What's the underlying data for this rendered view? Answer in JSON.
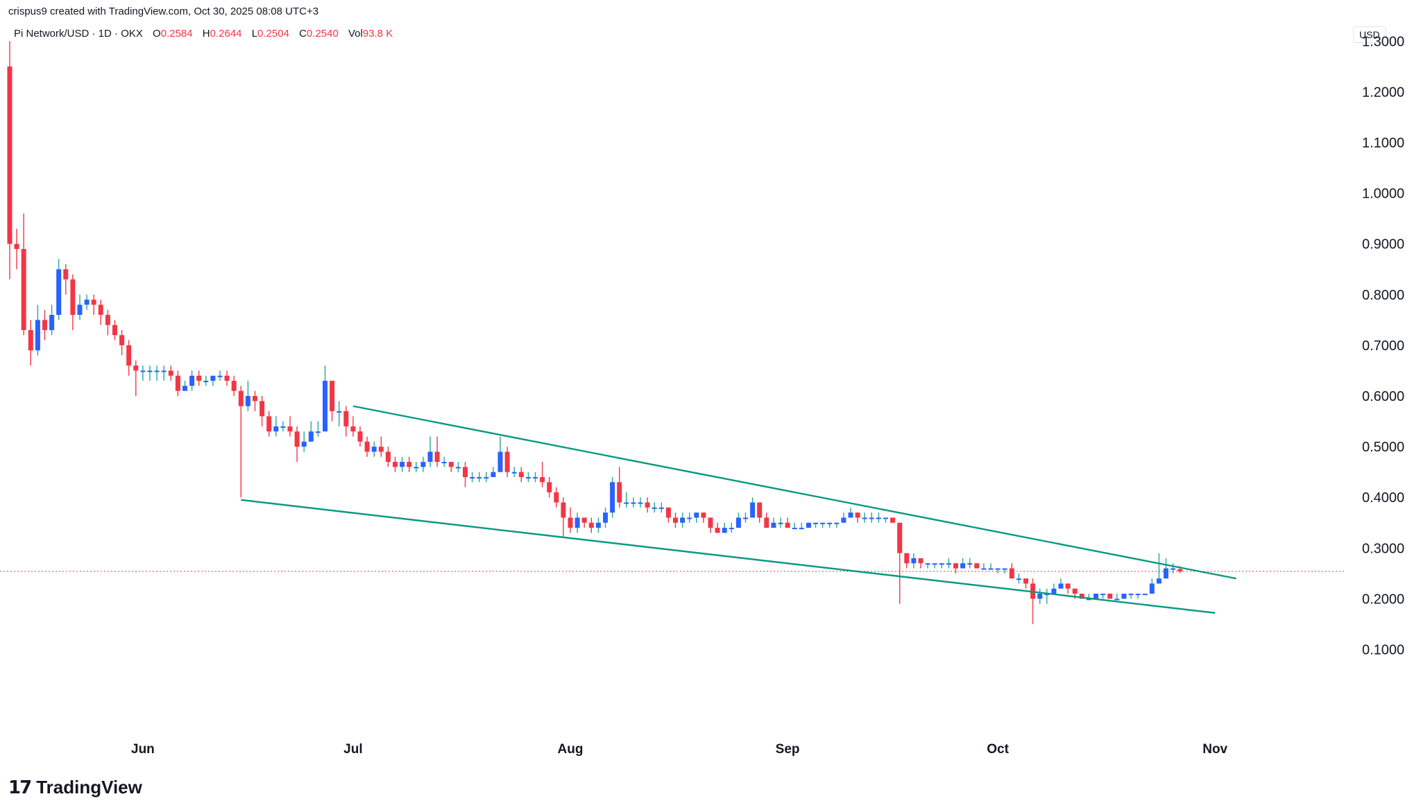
{
  "header": {
    "credit": "crispus9 created with TradingView.com, Oct 30, 2025 08:08 UTC+3"
  },
  "symbol": {
    "name": "Pi Network/USD · 1D · OKX",
    "open_label": "O",
    "open": "0.2584",
    "high_label": "H",
    "high": "0.2644",
    "low_label": "L",
    "low": "0.2504",
    "close_label": "C",
    "close": "0.2540",
    "vol_label": "Vol",
    "vol": "93.8 K"
  },
  "currency": "USD",
  "footer": {
    "logo_mark": "17",
    "brand": "TradingView"
  },
  "colors": {
    "up": "#2962ff",
    "down": "#f23645",
    "wick_up": "#26a69a",
    "channel": "#089981",
    "price_line": "#f23645"
  },
  "chart_data": {
    "type": "candlestick",
    "ylim": [
      0.05,
      1.45
    ],
    "y_ticks": [
      "1.3000",
      "1.2000",
      "1.1000",
      "1.0000",
      "0.9000",
      "0.8000",
      "0.7000",
      "0.6000",
      "0.5000",
      "0.4000",
      "0.3000",
      "0.2000",
      "0.1000"
    ],
    "x_ticks": [
      {
        "label": "Jun",
        "day": 19
      },
      {
        "label": "Jul",
        "day": 49
      },
      {
        "label": "Aug",
        "day": 80
      },
      {
        "label": "Sep",
        "day": 111
      },
      {
        "label": "Oct",
        "day": 141
      },
      {
        "label": "Nov",
        "day": 172
      }
    ],
    "last_price": 0.254,
    "candles": [
      [
        1.25,
        0.9,
        1.3,
        0.83
      ],
      [
        0.9,
        0.89,
        0.93,
        0.85
      ],
      [
        0.89,
        0.73,
        0.96,
        0.72
      ],
      [
        0.73,
        0.69,
        0.75,
        0.66
      ],
      [
        0.69,
        0.75,
        0.78,
        0.68
      ],
      [
        0.75,
        0.73,
        0.77,
        0.71
      ],
      [
        0.73,
        0.76,
        0.78,
        0.72
      ],
      [
        0.76,
        0.85,
        0.87,
        0.75
      ],
      [
        0.85,
        0.83,
        0.86,
        0.8
      ],
      [
        0.83,
        0.76,
        0.84,
        0.73
      ],
      [
        0.76,
        0.78,
        0.8,
        0.75
      ],
      [
        0.78,
        0.79,
        0.8,
        0.77
      ],
      [
        0.79,
        0.78,
        0.8,
        0.76
      ],
      [
        0.78,
        0.76,
        0.79,
        0.74
      ],
      [
        0.76,
        0.74,
        0.77,
        0.72
      ],
      [
        0.74,
        0.72,
        0.75,
        0.71
      ],
      [
        0.72,
        0.7,
        0.73,
        0.68
      ],
      [
        0.7,
        0.66,
        0.71,
        0.64
      ],
      [
        0.66,
        0.65,
        0.67,
        0.6
      ],
      [
        0.65,
        0.65,
        0.66,
        0.63
      ],
      [
        0.65,
        0.65,
        0.66,
        0.63
      ],
      [
        0.65,
        0.65,
        0.66,
        0.63
      ],
      [
        0.65,
        0.65,
        0.66,
        0.63
      ],
      [
        0.65,
        0.64,
        0.66,
        0.63
      ],
      [
        0.64,
        0.61,
        0.65,
        0.6
      ],
      [
        0.61,
        0.62,
        0.63,
        0.61
      ],
      [
        0.62,
        0.64,
        0.65,
        0.61
      ],
      [
        0.64,
        0.63,
        0.65,
        0.62
      ],
      [
        0.63,
        0.63,
        0.64,
        0.62
      ],
      [
        0.63,
        0.64,
        0.64,
        0.62
      ],
      [
        0.64,
        0.64,
        0.65,
        0.63
      ],
      [
        0.64,
        0.63,
        0.65,
        0.62
      ],
      [
        0.63,
        0.61,
        0.64,
        0.6
      ],
      [
        0.61,
        0.58,
        0.62,
        0.4
      ],
      [
        0.58,
        0.6,
        0.63,
        0.57
      ],
      [
        0.6,
        0.59,
        0.61,
        0.57
      ],
      [
        0.59,
        0.56,
        0.6,
        0.54
      ],
      [
        0.56,
        0.53,
        0.57,
        0.52
      ],
      [
        0.53,
        0.54,
        0.56,
        0.52
      ],
      [
        0.54,
        0.54,
        0.55,
        0.53
      ],
      [
        0.54,
        0.53,
        0.56,
        0.52
      ],
      [
        0.53,
        0.5,
        0.54,
        0.47
      ],
      [
        0.5,
        0.51,
        0.53,
        0.49
      ],
      [
        0.51,
        0.53,
        0.55,
        0.51
      ],
      [
        0.53,
        0.53,
        0.55,
        0.52
      ],
      [
        0.53,
        0.63,
        0.66,
        0.54
      ],
      [
        0.63,
        0.57,
        0.63,
        0.55
      ],
      [
        0.57,
        0.57,
        0.59,
        0.54
      ],
      [
        0.57,
        0.54,
        0.58,
        0.52
      ],
      [
        0.54,
        0.53,
        0.56,
        0.52
      ],
      [
        0.53,
        0.51,
        0.54,
        0.5
      ],
      [
        0.51,
        0.49,
        0.52,
        0.48
      ],
      [
        0.49,
        0.5,
        0.51,
        0.48
      ],
      [
        0.5,
        0.49,
        0.52,
        0.48
      ],
      [
        0.49,
        0.47,
        0.5,
        0.46
      ],
      [
        0.47,
        0.46,
        0.48,
        0.45
      ],
      [
        0.46,
        0.47,
        0.48,
        0.45
      ],
      [
        0.47,
        0.46,
        0.48,
        0.45
      ],
      [
        0.46,
        0.46,
        0.47,
        0.45
      ],
      [
        0.46,
        0.47,
        0.48,
        0.45
      ],
      [
        0.47,
        0.49,
        0.52,
        0.46
      ],
      [
        0.49,
        0.47,
        0.52,
        0.46
      ],
      [
        0.47,
        0.47,
        0.48,
        0.46
      ],
      [
        0.47,
        0.46,
        0.47,
        0.45
      ],
      [
        0.46,
        0.46,
        0.47,
        0.45
      ],
      [
        0.46,
        0.44,
        0.47,
        0.42
      ],
      [
        0.44,
        0.44,
        0.45,
        0.43
      ],
      [
        0.44,
        0.44,
        0.45,
        0.43
      ],
      [
        0.44,
        0.44,
        0.45,
        0.43
      ],
      [
        0.44,
        0.45,
        0.46,
        0.44
      ],
      [
        0.45,
        0.49,
        0.52,
        0.45
      ],
      [
        0.49,
        0.45,
        0.5,
        0.44
      ],
      [
        0.45,
        0.45,
        0.46,
        0.44
      ],
      [
        0.45,
        0.44,
        0.46,
        0.43
      ],
      [
        0.44,
        0.44,
        0.45,
        0.43
      ],
      [
        0.44,
        0.44,
        0.45,
        0.43
      ],
      [
        0.44,
        0.43,
        0.47,
        0.42
      ],
      [
        0.43,
        0.41,
        0.44,
        0.4
      ],
      [
        0.41,
        0.39,
        0.42,
        0.38
      ],
      [
        0.39,
        0.36,
        0.4,
        0.32
      ],
      [
        0.36,
        0.34,
        0.38,
        0.33
      ],
      [
        0.34,
        0.36,
        0.37,
        0.33
      ],
      [
        0.36,
        0.35,
        0.36,
        0.34
      ],
      [
        0.35,
        0.34,
        0.36,
        0.33
      ],
      [
        0.34,
        0.35,
        0.36,
        0.33
      ],
      [
        0.35,
        0.37,
        0.38,
        0.34
      ],
      [
        0.37,
        0.43,
        0.44,
        0.36
      ],
      [
        0.43,
        0.39,
        0.46,
        0.38
      ],
      [
        0.39,
        0.39,
        0.41,
        0.38
      ],
      [
        0.39,
        0.39,
        0.4,
        0.38
      ],
      [
        0.39,
        0.39,
        0.4,
        0.38
      ],
      [
        0.39,
        0.38,
        0.4,
        0.37
      ],
      [
        0.38,
        0.38,
        0.39,
        0.37
      ],
      [
        0.38,
        0.38,
        0.39,
        0.37
      ],
      [
        0.38,
        0.36,
        0.38,
        0.35
      ],
      [
        0.36,
        0.35,
        0.37,
        0.34
      ],
      [
        0.35,
        0.36,
        0.37,
        0.34
      ],
      [
        0.36,
        0.36,
        0.37,
        0.35
      ],
      [
        0.36,
        0.37,
        0.37,
        0.35
      ],
      [
        0.37,
        0.36,
        0.37,
        0.35
      ],
      [
        0.36,
        0.34,
        0.36,
        0.33
      ],
      [
        0.34,
        0.33,
        0.35,
        0.33
      ],
      [
        0.33,
        0.34,
        0.35,
        0.33
      ],
      [
        0.34,
        0.34,
        0.35,
        0.33
      ],
      [
        0.34,
        0.36,
        0.37,
        0.34
      ],
      [
        0.36,
        0.36,
        0.37,
        0.35
      ],
      [
        0.36,
        0.39,
        0.4,
        0.36
      ],
      [
        0.39,
        0.36,
        0.39,
        0.35
      ],
      [
        0.36,
        0.34,
        0.37,
        0.34
      ],
      [
        0.34,
        0.35,
        0.36,
        0.34
      ],
      [
        0.35,
        0.35,
        0.36,
        0.34
      ],
      [
        0.35,
        0.34,
        0.36,
        0.34
      ],
      [
        0.34,
        0.34,
        0.35,
        0.34
      ],
      [
        0.34,
        0.34,
        0.35,
        0.34
      ],
      [
        0.34,
        0.35,
        0.35,
        0.34
      ],
      [
        0.35,
        0.35,
        0.35,
        0.34
      ],
      [
        0.35,
        0.35,
        0.35,
        0.34
      ],
      [
        0.35,
        0.35,
        0.35,
        0.34
      ],
      [
        0.35,
        0.35,
        0.35,
        0.34
      ],
      [
        0.35,
        0.36,
        0.37,
        0.35
      ],
      [
        0.36,
        0.37,
        0.38,
        0.36
      ],
      [
        0.37,
        0.36,
        0.37,
        0.35
      ],
      [
        0.36,
        0.36,
        0.37,
        0.35
      ],
      [
        0.36,
        0.36,
        0.37,
        0.35
      ],
      [
        0.36,
        0.36,
        0.37,
        0.35
      ],
      [
        0.36,
        0.36,
        0.36,
        0.35
      ],
      [
        0.36,
        0.35,
        0.36,
        0.35
      ],
      [
        0.35,
        0.29,
        0.35,
        0.19
      ],
      [
        0.29,
        0.27,
        0.29,
        0.26
      ],
      [
        0.27,
        0.28,
        0.29,
        0.26
      ],
      [
        0.28,
        0.27,
        0.28,
        0.26
      ],
      [
        0.27,
        0.27,
        0.27,
        0.26
      ],
      [
        0.27,
        0.27,
        0.27,
        0.26
      ],
      [
        0.27,
        0.27,
        0.27,
        0.26
      ],
      [
        0.27,
        0.27,
        0.28,
        0.26
      ],
      [
        0.27,
        0.26,
        0.27,
        0.25
      ],
      [
        0.26,
        0.27,
        0.28,
        0.26
      ],
      [
        0.27,
        0.27,
        0.28,
        0.26
      ],
      [
        0.27,
        0.26,
        0.27,
        0.26
      ],
      [
        0.26,
        0.26,
        0.27,
        0.26
      ],
      [
        0.26,
        0.26,
        0.27,
        0.26
      ],
      [
        0.26,
        0.26,
        0.26,
        0.25
      ],
      [
        0.26,
        0.26,
        0.26,
        0.25
      ],
      [
        0.26,
        0.24,
        0.27,
        0.24
      ],
      [
        0.24,
        0.24,
        0.25,
        0.23
      ],
      [
        0.24,
        0.23,
        0.24,
        0.22
      ],
      [
        0.23,
        0.2,
        0.24,
        0.15
      ],
      [
        0.2,
        0.21,
        0.22,
        0.19
      ],
      [
        0.21,
        0.21,
        0.22,
        0.19
      ],
      [
        0.21,
        0.22,
        0.23,
        0.21
      ],
      [
        0.22,
        0.23,
        0.24,
        0.22
      ],
      [
        0.23,
        0.22,
        0.23,
        0.21
      ],
      [
        0.22,
        0.21,
        0.22,
        0.2
      ],
      [
        0.21,
        0.2,
        0.21,
        0.2
      ],
      [
        0.2,
        0.2,
        0.21,
        0.2
      ],
      [
        0.2,
        0.21,
        0.21,
        0.2
      ],
      [
        0.21,
        0.21,
        0.21,
        0.2
      ],
      [
        0.21,
        0.2,
        0.21,
        0.2
      ],
      [
        0.2,
        0.2,
        0.21,
        0.2
      ],
      [
        0.2,
        0.21,
        0.21,
        0.2
      ],
      [
        0.21,
        0.21,
        0.21,
        0.2
      ],
      [
        0.21,
        0.21,
        0.21,
        0.2
      ],
      [
        0.21,
        0.21,
        0.21,
        0.21
      ],
      [
        0.21,
        0.23,
        0.24,
        0.21
      ],
      [
        0.23,
        0.24,
        0.29,
        0.23
      ],
      [
        0.24,
        0.26,
        0.28,
        0.24
      ],
      [
        0.26,
        0.26,
        0.27,
        0.25
      ],
      [
        0.2584,
        0.254,
        0.2644,
        0.2504
      ]
    ],
    "trendlines": [
      {
        "name": "upper",
        "from": {
          "day": 49,
          "price": 0.58
        },
        "to": {
          "day": 175,
          "price": 0.24
        }
      },
      {
        "name": "lower",
        "from": {
          "day": 33,
          "price": 0.395
        },
        "to": {
          "day": 172,
          "price": 0.172
        }
      }
    ]
  }
}
